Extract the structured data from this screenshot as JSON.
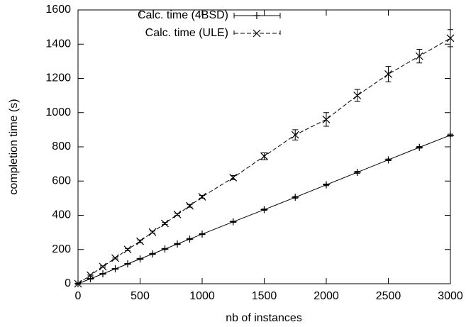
{
  "chart_data": {
    "type": "line",
    "xlabel": "nb of instances",
    "ylabel": "completion time (s)",
    "x": [
      0,
      100,
      200,
      300,
      400,
      500,
      600,
      700,
      800,
      900,
      1000,
      1250,
      1500,
      1750,
      2000,
      2250,
      2500,
      2750,
      3000
    ],
    "series": [
      {
        "name": "Calc. time (4BSD)",
        "color": "#000000",
        "dash": "solid",
        "marker": "plus",
        "values": [
          0,
          29,
          58,
          87,
          116,
          145,
          174,
          203,
          232,
          261,
          290,
          362,
          433,
          505,
          578,
          651,
          724,
          797,
          868
        ],
        "errors": [
          2,
          2,
          2,
          2,
          2,
          3,
          3,
          3,
          3,
          3,
          3,
          4,
          4,
          5,
          5,
          6,
          5,
          5,
          6
        ]
      },
      {
        "name": "Calc. time (ULE)",
        "color": "#000000",
        "dash": "dashed",
        "marker": "cross",
        "values": [
          0,
          50,
          100,
          150,
          200,
          248,
          302,
          352,
          405,
          455,
          508,
          620,
          745,
          870,
          960,
          1100,
          1225,
          1330,
          1435
        ],
        "errors": [
          3,
          4,
          4,
          5,
          6,
          8,
          6,
          6,
          6,
          8,
          8,
          12,
          20,
          30,
          40,
          35,
          45,
          40,
          50
        ]
      }
    ],
    "xlim": [
      0,
      3000
    ],
    "xticks": [
      0,
      500,
      1000,
      1500,
      2000,
      2500,
      3000
    ],
    "ylim": [
      0,
      1600
    ],
    "yticks": [
      0,
      200,
      400,
      600,
      800,
      1000,
      1200,
      1400,
      1600
    ],
    "grid": false,
    "legend": "top-left"
  }
}
